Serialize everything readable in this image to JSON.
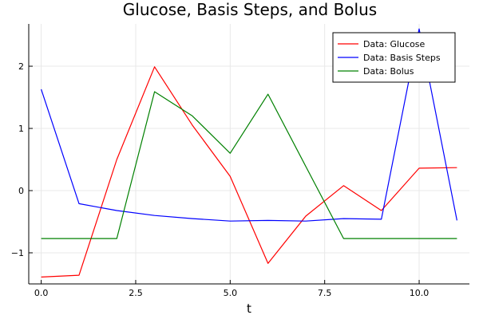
{
  "chart_data": {
    "type": "line",
    "title": "Glucose, Basis Steps, and Bolus",
    "xlabel": "t",
    "ylabel": "",
    "xlim": [
      -0.33,
      11.33
    ],
    "ylim": [
      -1.5,
      2.68
    ],
    "grid": true,
    "legend_position": "top-right",
    "x_ticks": [
      0,
      2.5,
      5,
      7.5,
      10
    ],
    "x_tick_labels": [
      "0.0",
      "2.5",
      "5.0",
      "7.5",
      "10.0"
    ],
    "y_ticks": [
      -1,
      0,
      1,
      2
    ],
    "y_tick_labels": [
      "−1",
      "0",
      "1",
      "2"
    ],
    "x": [
      0,
      1,
      2,
      3,
      4,
      5,
      6,
      7,
      8,
      9,
      10,
      11
    ],
    "series": [
      {
        "name": "Data: Glucose",
        "color": "#ff0000",
        "values": [
          -1.39,
          -1.36,
          0.5,
          1.99,
          1.05,
          0.23,
          -1.17,
          -0.41,
          0.08,
          -0.32,
          0.36,
          0.37
        ]
      },
      {
        "name": "Data: Basis Steps",
        "color": "#0000ff",
        "values": [
          1.63,
          -0.21,
          -0.32,
          -0.4,
          -0.45,
          -0.49,
          -0.48,
          -0.49,
          -0.45,
          -0.46,
          2.6,
          -0.48
        ]
      },
      {
        "name": "Data: Bolus",
        "color": "#008000",
        "values": [
          -0.77,
          -0.77,
          -0.77,
          1.59,
          1.2,
          0.6,
          1.55,
          0.39,
          -0.77,
          -0.77,
          -0.77,
          -0.77
        ]
      }
    ]
  }
}
